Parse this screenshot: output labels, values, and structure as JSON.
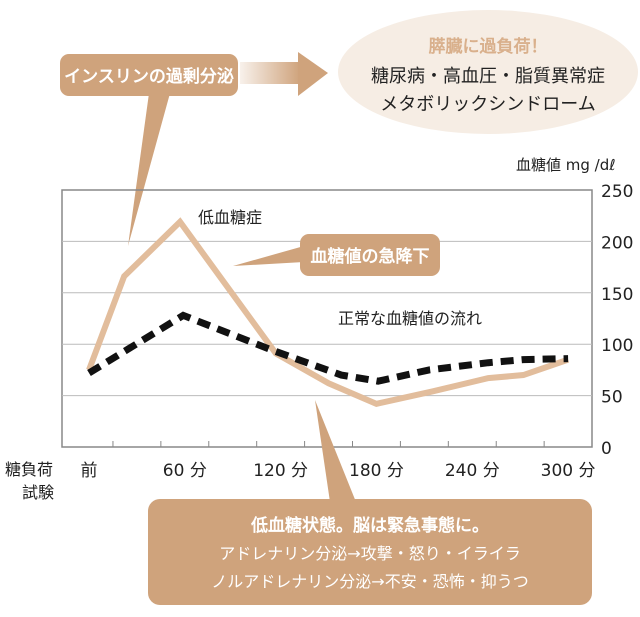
{
  "colors": {
    "accent": "#cfa37c",
    "hypoglycemia_line": "#e2bd9c",
    "normal_line": "#111111",
    "ellipse_fill": "#f6ede4",
    "ellipse_title": "#d9b08c",
    "grid": "#bbbbbb"
  },
  "callouts": {
    "insulin": "インスリンの過剰分泌",
    "pancreas_title": "膵臓に過負荷！",
    "pancreas_line1": "糖尿病・高血圧・脂質異常症",
    "pancreas_line2": "メタボリックシンドローム",
    "rapid_drop": "血糖値の急降下",
    "brain_title": "低血糖状態。脳は緊急事態に。",
    "brain_line1": "アドレナリン分泌→攻撃・怒り・イライラ",
    "brain_line2": "ノルアドレナリン分泌→不安・恐怖・抑うつ"
  },
  "chart_data": {
    "type": "line",
    "title": "",
    "ylabel": "血糖値 mg /dℓ",
    "xlabel": "糖負荷試験",
    "xlabel_lines": [
      "糖負荷",
      "試験"
    ],
    "ylim": [
      0,
      250
    ],
    "yticks": [
      0,
      50,
      100,
      150,
      200,
      250
    ],
    "xlim": [
      0,
      300
    ],
    "xtick_labels": [
      {
        "t": 0,
        "label": "前"
      },
      {
        "t": 60,
        "label": "60 分"
      },
      {
        "t": 120,
        "label": "120 分"
      },
      {
        "t": 180,
        "label": "180 分"
      },
      {
        "t": 240,
        "label": "240 分"
      },
      {
        "t": 300,
        "label": "300 分"
      }
    ],
    "minor_ticks": [
      15,
      45,
      75,
      105,
      135,
      165,
      195,
      225,
      255,
      285
    ],
    "grid": true,
    "series": [
      {
        "name": "低血糖症",
        "style": "solid",
        "x": [
          0,
          22,
          57,
          117,
          150,
          180,
          215,
          250,
          272,
          300
        ],
        "y": [
          75,
          166,
          219,
          91,
          62,
          42,
          54,
          67,
          70,
          85
        ]
      },
      {
        "name": "正常な血糖値の流れ",
        "style": "dashed",
        "x": [
          0,
          59,
          115,
          158,
          181,
          213,
          250,
          272,
          300
        ],
        "y": [
          72,
          128,
          94,
          70,
          64,
          75,
          82,
          85,
          86
        ]
      }
    ]
  }
}
